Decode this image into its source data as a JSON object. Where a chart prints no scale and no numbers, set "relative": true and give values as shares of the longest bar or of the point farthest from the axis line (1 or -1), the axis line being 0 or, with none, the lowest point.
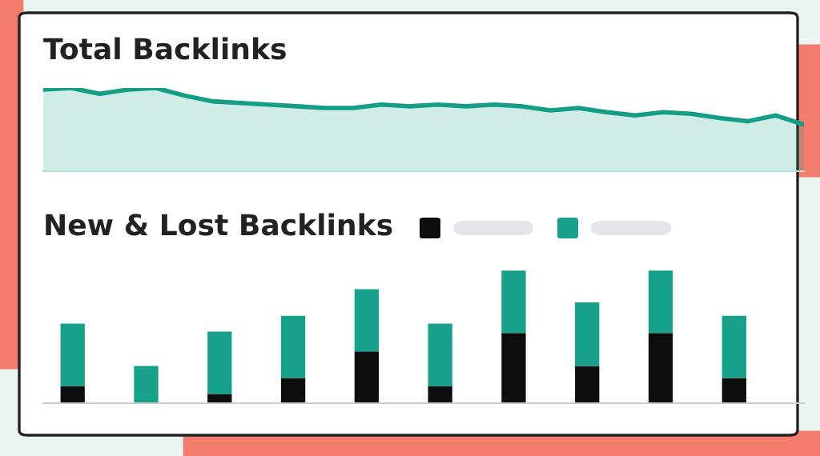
{
  "chart_data": [
    {
      "type": "area",
      "title": "Total Backlinks",
      "relative": true,
      "categories": [
        null,
        null,
        null,
        null,
        null,
        null,
        null,
        null,
        null,
        null,
        null,
        null,
        null,
        null,
        null,
        null,
        null,
        null,
        null,
        null,
        null,
        null,
        null,
        null,
        null,
        null,
        null,
        null
      ],
      "series": [
        {
          "color": "#149e86",
          "values": [
            0.98,
            1,
            0.93,
            0.98,
            1,
            0.91,
            0.84,
            0.82,
            0.8,
            0.78,
            0.76,
            0.76,
            0.8,
            0.78,
            0.8,
            0.78,
            0.8,
            0.78,
            0.73,
            0.76,
            0.71,
            0.67,
            0.71,
            0.69,
            0.64,
            0.6,
            0.67,
            0.56
          ]
        }
      ]
    },
    {
      "type": "bar",
      "title": "New & Lost Backlinks",
      "relative": true,
      "stacked": true,
      "categories": [
        null,
        null,
        null,
        null,
        null,
        null,
        null,
        null,
        null,
        null
      ],
      "series": [
        {
          "color": "#0d0d0d",
          "values": [
            0.13,
            0,
            0.07,
            0.19,
            0.39,
            0.13,
            0.53,
            0.28,
            0.53,
            0.19
          ]
        },
        {
          "color": "#17a08a",
          "values": [
            0.47,
            0.28,
            0.47,
            0.47,
            0.47,
            0.47,
            0.47,
            0.48,
            0.47,
            0.47
          ]
        }
      ]
    }
  ]
}
